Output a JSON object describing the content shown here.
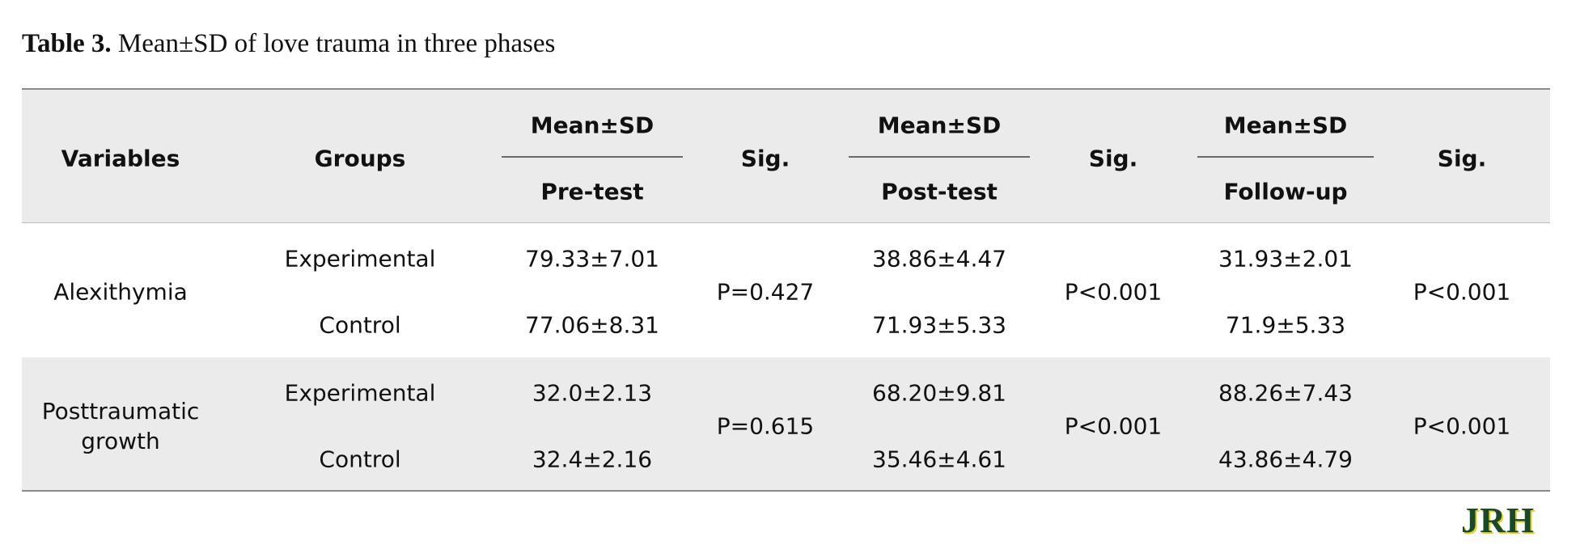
{
  "title": {
    "label": "Table 3.",
    "text": "Mean±SD of love trauma in three phases"
  },
  "table": {
    "columns": [
      {
        "label": "Variables"
      },
      {
        "label": "Groups"
      },
      {
        "label": "Mean±SD",
        "sublabel": "Pre-test"
      },
      {
        "label": "Sig."
      },
      {
        "label": "Mean±SD",
        "sublabel": "Post-test"
      },
      {
        "label": "Sig."
      },
      {
        "label": "Mean±SD",
        "sublabel": "Follow-up"
      },
      {
        "label": "Sig."
      }
    ],
    "rows": [
      {
        "variable": "Alexithymia",
        "groups": [
          {
            "name": "Experimental",
            "values": [
              "79.33±7.01",
              "38.86±4.47",
              "31.93±2.01"
            ]
          },
          {
            "name": "Control",
            "values": [
              "77.06±8.31",
              "71.93±5.33",
              "71.9±5.33"
            ]
          }
        ],
        "sig": [
          "P=0.427",
          "P<0.001",
          "P<0.001"
        ]
      },
      {
        "variable": "Posttraumatic growth",
        "groups": [
          {
            "name": "Experimental",
            "values": [
              "32.0±2.13",
              "68.20±9.81",
              "88.26±7.43"
            ]
          },
          {
            "name": "Control",
            "values": [
              "32.4±2.16",
              "35.46±4.61",
              "43.86±4.79"
            ]
          }
        ],
        "sig": [
          "P=0.615",
          "P<0.001",
          "P<0.001"
        ]
      }
    ]
  },
  "logo": "JRH"
}
